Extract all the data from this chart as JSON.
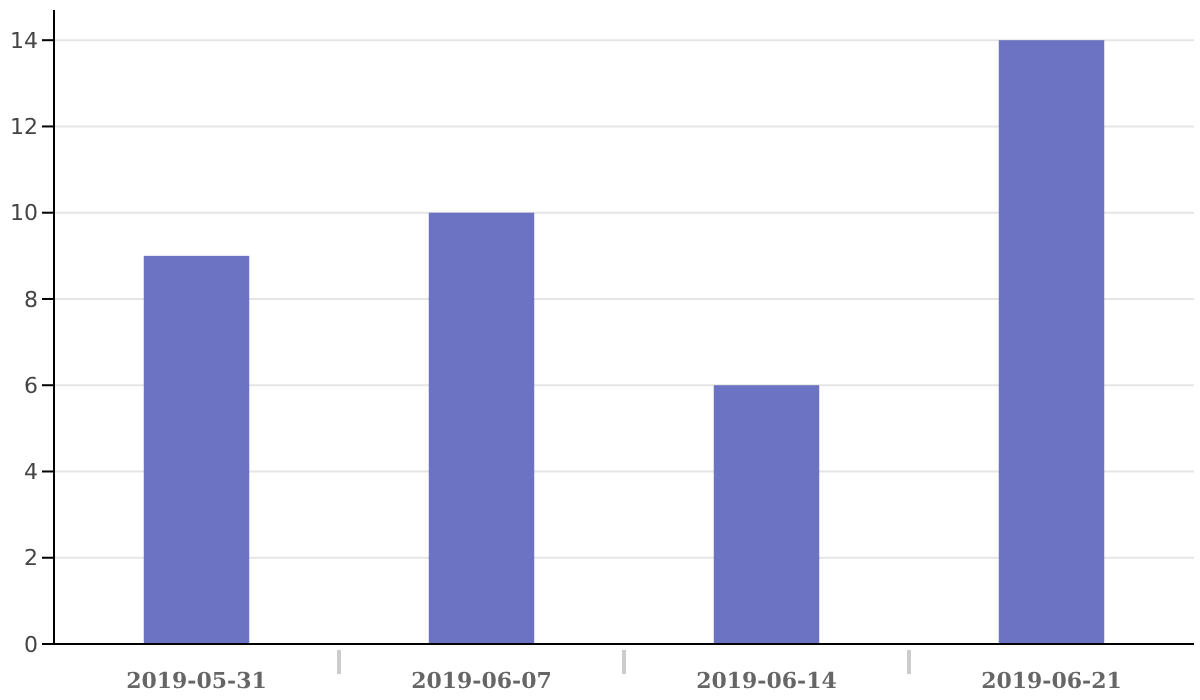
{
  "chart_data": {
    "type": "bar",
    "categories": [
      "2019-05-31",
      "2019-06-07",
      "2019-06-14",
      "2019-06-21"
    ],
    "values": [
      9,
      10,
      6,
      14
    ],
    "color": "#6b73c2",
    "ylim": [
      0,
      14.7
    ],
    "yticks": [
      0,
      2,
      4,
      6,
      8,
      10,
      12,
      14
    ],
    "grid": "y"
  }
}
